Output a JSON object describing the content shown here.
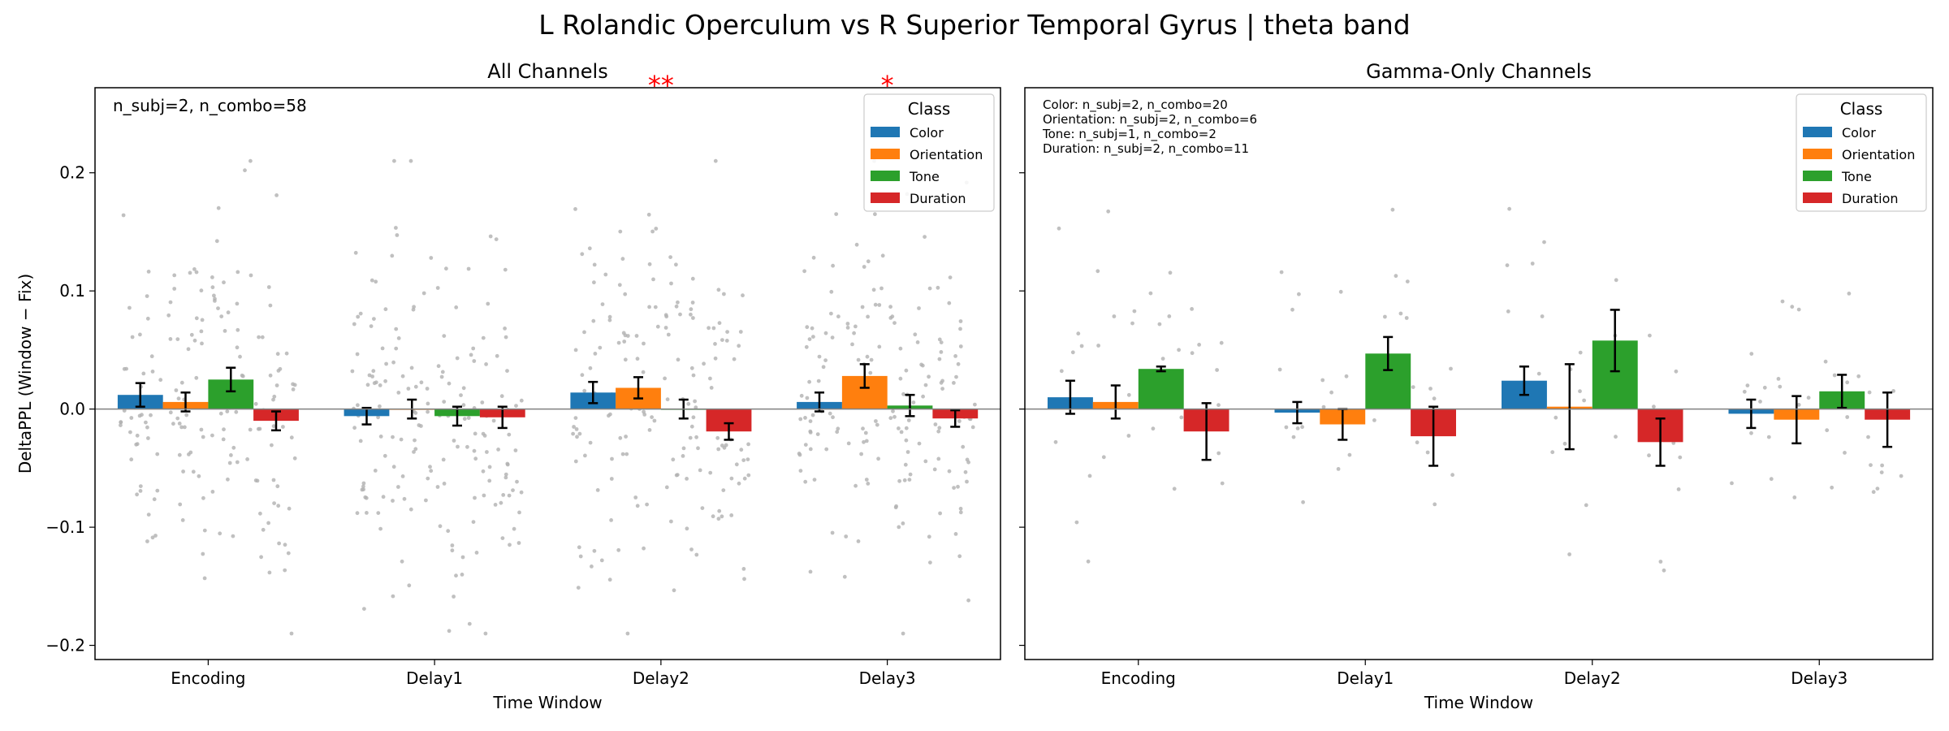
{
  "figure": {
    "title": "L Rolandic Operculum vs R Superior Temporal Gyrus  |  theta band",
    "ylabel": "DeltaPPL (Window − Fix)",
    "xlabel": "Time Window",
    "legend_title": "Class",
    "colors": {
      "Color": "#1f77b4",
      "Orientation": "#ff7f0e",
      "Tone": "#2ca02c",
      "Duration": "#d62728"
    }
  },
  "chart_data": [
    {
      "type": "bar",
      "title": "All Channels",
      "xlabel": "Time Window",
      "ylabel": "DeltaPPL (Window − Fix)",
      "categories": [
        "Encoding",
        "Delay1",
        "Delay2",
        "Delay3"
      ],
      "ylim": [
        -0.212,
        0.272
      ],
      "yticks": [
        -0.2,
        -0.1,
        0.0,
        0.1,
        0.2
      ],
      "ytick_labels": [
        "−0.2",
        "−0.1",
        "0.0",
        "0.1",
        "0.2"
      ],
      "legend_position": "top-right",
      "annotation": "n_subj=2, n_combo=58",
      "significance": [
        "",
        "",
        "**",
        "*"
      ],
      "series": [
        {
          "name": "Color",
          "values": [
            0.012,
            -0.006,
            0.014,
            0.006
          ],
          "errors": [
            0.01,
            0.007,
            0.009,
            0.008
          ]
        },
        {
          "name": "Orientation",
          "values": [
            0.006,
            0.0,
            0.018,
            0.028
          ],
          "errors": [
            0.008,
            0.008,
            0.009,
            0.01
          ]
        },
        {
          "name": "Tone",
          "values": [
            0.025,
            -0.006,
            0.0,
            0.003
          ],
          "errors": [
            0.01,
            0.008,
            0.008,
            0.009
          ]
        },
        {
          "name": "Duration",
          "values": [
            -0.01,
            -0.007,
            -0.019,
            -0.008
          ],
          "errors": [
            0.008,
            0.009,
            0.007,
            0.007
          ]
        }
      ]
    },
    {
      "type": "bar",
      "title": "Gamma-Only Channels",
      "xlabel": "Time Window",
      "categories": [
        "Encoding",
        "Delay1",
        "Delay2",
        "Delay3"
      ],
      "ylim": [
        -0.212,
        0.272
      ],
      "legend_position": "top-right",
      "annotation_lines": [
        "Color: n_subj=2, n_combo=20",
        "Orientation: n_subj=2, n_combo=6",
        "Tone: n_subj=1, n_combo=2",
        "Duration: n_subj=2, n_combo=11"
      ],
      "series": [
        {
          "name": "Color",
          "values": [
            0.01,
            -0.003,
            0.024,
            -0.004
          ],
          "errors": [
            0.014,
            0.009,
            0.012,
            0.012
          ]
        },
        {
          "name": "Orientation",
          "values": [
            0.006,
            -0.013,
            0.002,
            -0.009
          ],
          "errors": [
            0.014,
            0.013,
            0.036,
            0.02
          ]
        },
        {
          "name": "Tone",
          "values": [
            0.034,
            0.047,
            0.058,
            0.015
          ],
          "errors": [
            0.002,
            0.014,
            0.026,
            0.014
          ]
        },
        {
          "name": "Duration",
          "values": [
            -0.019,
            -0.023,
            -0.028,
            -0.009
          ],
          "errors": [
            0.024,
            0.025,
            0.02,
            0.023
          ]
        }
      ]
    }
  ]
}
